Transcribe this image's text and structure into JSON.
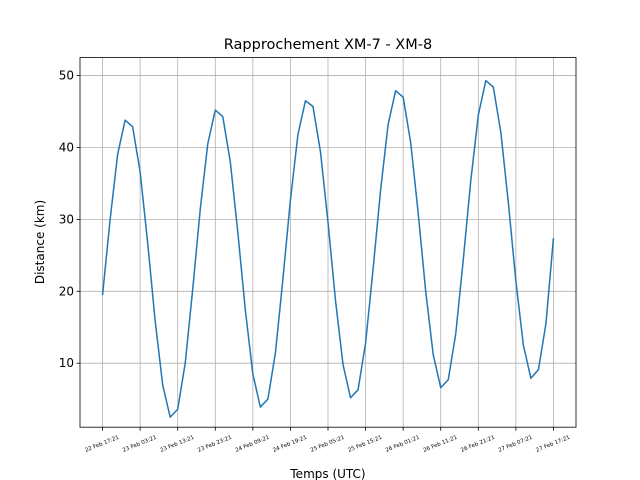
{
  "chart_data": {
    "type": "line",
    "title": "Rapprochement XM-7 - XM-8",
    "x_label": "Temps (UTC)",
    "y_label": "Distance (km)",
    "x": [
      "22 Feb 17:21",
      "22 Feb 19:21",
      "22 Feb 21:21",
      "22 Feb 23:21",
      "23 Feb 01:21",
      "23 Feb 03:21",
      "23 Feb 05:21",
      "23 Feb 07:21",
      "23 Feb 09:21",
      "23 Feb 11:21",
      "23 Feb 13:21",
      "23 Feb 15:21",
      "23 Feb 17:21",
      "23 Feb 19:21",
      "23 Feb 21:21",
      "23 Feb 23:21",
      "24 Feb 01:21",
      "24 Feb 03:21",
      "24 Feb 05:21",
      "24 Feb 07:21",
      "24 Feb 09:21",
      "24 Feb 11:21",
      "24 Feb 13:21",
      "24 Feb 15:21",
      "24 Feb 17:21",
      "24 Feb 19:21",
      "24 Feb 21:21",
      "24 Feb 23:21",
      "25 Feb 01:21",
      "25 Feb 03:21",
      "25 Feb 05:21",
      "25 Feb 07:21",
      "25 Feb 09:21",
      "25 Feb 11:21",
      "25 Feb 13:21",
      "25 Feb 15:21",
      "25 Feb 17:21",
      "25 Feb 19:21",
      "25 Feb 21:21",
      "25 Feb 23:21",
      "26 Feb 01:21",
      "26 Feb 03:21",
      "26 Feb 05:21",
      "26 Feb 07:21",
      "26 Feb 09:21",
      "26 Feb 11:21",
      "26 Feb 13:21",
      "26 Feb 15:21",
      "26 Feb 17:21",
      "26 Feb 19:21",
      "26 Feb 21:21",
      "26 Feb 23:21",
      "27 Feb 01:21",
      "27 Feb 03:21",
      "27 Feb 05:21",
      "27 Feb 07:21",
      "27 Feb 09:21",
      "27 Feb 11:21",
      "27 Feb 13:21",
      "27 Feb 15:21",
      "27 Feb 17:21"
    ],
    "series": [
      {
        "name": "Distance",
        "color": "#1f77b4",
        "values": [
          19.5,
          29.9,
          39.0,
          43.8,
          42.9,
          36.6,
          26.8,
          15.9,
          7.0,
          2.5,
          3.6,
          10.0,
          20.3,
          31.4,
          40.5,
          45.2,
          44.3,
          38.0,
          28.2,
          17.4,
          8.5,
          3.9,
          5.0,
          11.4,
          21.7,
          32.7,
          41.8,
          46.5,
          45.7,
          39.4,
          29.6,
          18.7,
          9.8,
          5.2,
          6.3,
          12.8,
          23.1,
          34.1,
          43.2,
          47.9,
          47.0,
          40.7,
          30.9,
          20.0,
          11.2,
          6.6,
          7.7,
          14.1,
          24.4,
          35.4,
          44.5,
          49.3,
          48.4,
          42.1,
          32.3,
          21.4,
          12.5,
          7.9,
          9.1,
          15.5,
          27.4
        ]
      }
    ],
    "xlim": [
      "22 Feb 11:21",
      "27 Feb 23:21"
    ],
    "xticks": [
      "22 Feb 17:21",
      "23 Feb 03:21",
      "23 Feb 13:21",
      "23 Feb 23:21",
      "24 Feb 09:21",
      "24 Feb 19:21",
      "25 Feb 05:21",
      "25 Feb 15:21",
      "26 Feb 01:21",
      "26 Feb 11:21",
      "26 Feb 21:21",
      "27 Feb 07:21",
      "27 Feb 17:21"
    ],
    "ylim": [
      1.1,
      52.5
    ],
    "yticks": [
      10,
      20,
      30,
      40,
      50
    ],
    "grid": true
  }
}
